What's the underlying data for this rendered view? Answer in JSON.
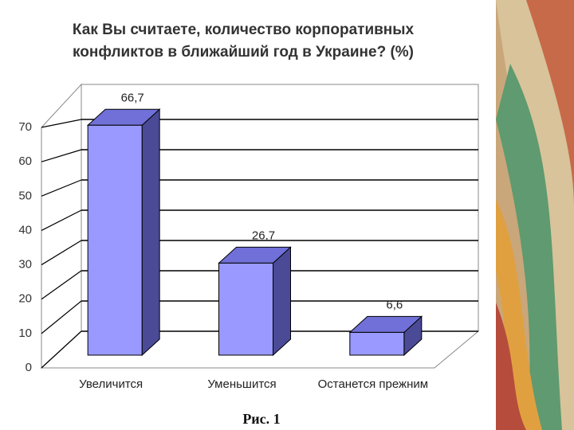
{
  "chart_data": {
    "type": "bar3d",
    "title": [
      "Как Вы считаете, количество корпоративных",
      "конфликтов в ближайший год в Украине? (%)"
    ],
    "categories": [
      "Увеличится",
      "Уменьшится",
      "Останется прежним"
    ],
    "values": [
      66.7,
      26.7,
      6.6
    ],
    "value_labels": [
      "66,7",
      "26,7",
      "6,6"
    ],
    "color": "#9999ff",
    "ylim": [
      0,
      70
    ],
    "yticks": [
      0,
      10,
      20,
      30,
      40,
      50,
      60,
      70
    ],
    "grid": true,
    "caption": "Рис. 1"
  }
}
